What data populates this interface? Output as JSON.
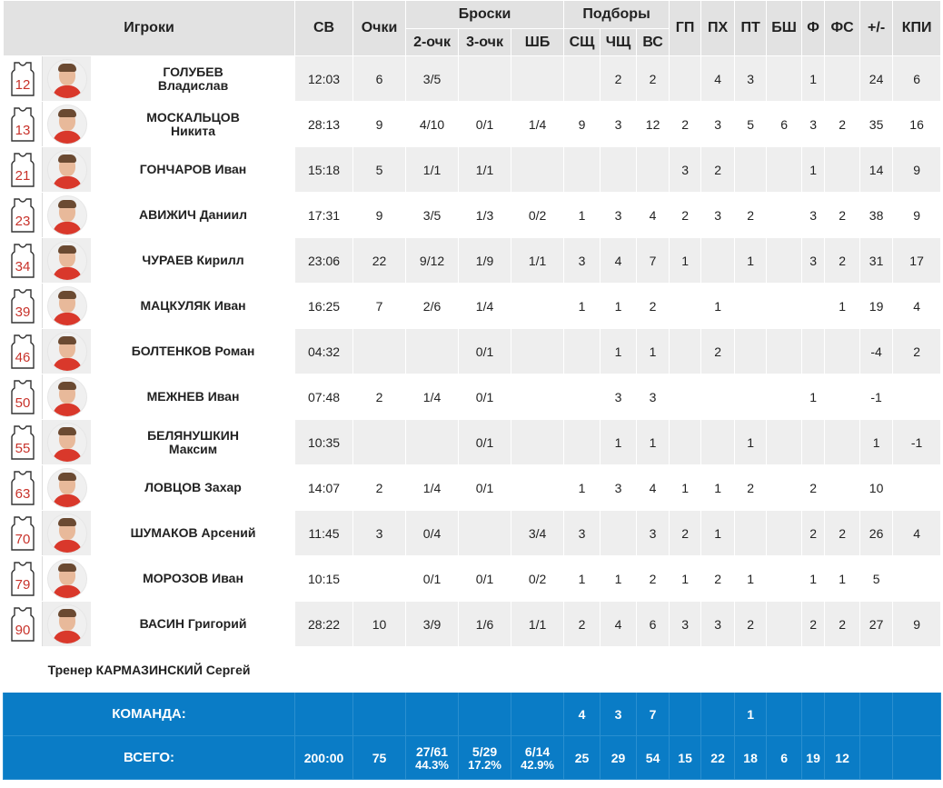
{
  "header": {
    "players": "Игроки",
    "sv": "СВ",
    "ochki": "Очки",
    "throws": "Броски",
    "two": "2-очк",
    "three": "3-очк",
    "ft": "ШБ",
    "rebounds": "Подборы",
    "sch": "СЩ",
    "chsch": "ЧЩ",
    "vs": "ВС",
    "gp": "ГП",
    "ph": "ПХ",
    "pt": "ПТ",
    "bsh": "БШ",
    "f": "Ф",
    "fs": "ФС",
    "pm": "+/-",
    "kpi": "КПИ"
  },
  "colors": {
    "jersey_number": "#c8322a",
    "team_row": "#0a7cc6",
    "header": "#e2e2e2",
    "alt_row": "#eeeeee"
  },
  "players": [
    {
      "num": "12",
      "name1": "ГОЛУБЕВ",
      "name2": "Владислав",
      "sv": "12:03",
      "pts": "6",
      "two": "3/5",
      "three": "",
      "ft": "",
      "sch": "",
      "chsch": "2",
      "vs": "2",
      "gp": "",
      "ph": "4",
      "pt": "3",
      "bsh": "",
      "f": "1",
      "fs": "",
      "pm": "24",
      "kpi": "6"
    },
    {
      "num": "13",
      "name1": "МОСКАЛЬЦОВ",
      "name2": "Никита",
      "sv": "28:13",
      "pts": "9",
      "two": "4/10",
      "three": "0/1",
      "ft": "1/4",
      "sch": "9",
      "chsch": "3",
      "vs": "12",
      "gp": "2",
      "ph": "3",
      "pt": "5",
      "bsh": "6",
      "f": "3",
      "fs": "2",
      "pm": "35",
      "kpi": "16"
    },
    {
      "num": "21",
      "name1": "ГОНЧАРОВ Иван",
      "name2": "",
      "sv": "15:18",
      "pts": "5",
      "two": "1/1",
      "three": "1/1",
      "ft": "",
      "sch": "",
      "chsch": "",
      "vs": "",
      "gp": "3",
      "ph": "2",
      "pt": "",
      "bsh": "",
      "f": "1",
      "fs": "",
      "pm": "14",
      "kpi": "9"
    },
    {
      "num": "23",
      "name1": "АВИЖИЧ Даниил",
      "name2": "",
      "sv": "17:31",
      "pts": "9",
      "two": "3/5",
      "three": "1/3",
      "ft": "0/2",
      "sch": "1",
      "chsch": "3",
      "vs": "4",
      "gp": "2",
      "ph": "3",
      "pt": "2",
      "bsh": "",
      "f": "3",
      "fs": "2",
      "pm": "38",
      "kpi": "9"
    },
    {
      "num": "34",
      "name1": "ЧУРАЕВ Кирилл",
      "name2": "",
      "sv": "23:06",
      "pts": "22",
      "two": "9/12",
      "three": "1/9",
      "ft": "1/1",
      "sch": "3",
      "chsch": "4",
      "vs": "7",
      "gp": "1",
      "ph": "",
      "pt": "1",
      "bsh": "",
      "f": "3",
      "fs": "2",
      "pm": "31",
      "kpi": "17"
    },
    {
      "num": "39",
      "name1": "МАЦКУЛЯК Иван",
      "name2": "",
      "sv": "16:25",
      "pts": "7",
      "two": "2/6",
      "three": "1/4",
      "ft": "",
      "sch": "1",
      "chsch": "1",
      "vs": "2",
      "gp": "",
      "ph": "1",
      "pt": "",
      "bsh": "",
      "f": "",
      "fs": "1",
      "pm": "19",
      "kpi": "4"
    },
    {
      "num": "46",
      "name1": "БОЛТЕНКОВ Роман",
      "name2": "",
      "sv": "04:32",
      "pts": "",
      "two": "",
      "three": "0/1",
      "ft": "",
      "sch": "",
      "chsch": "1",
      "vs": "1",
      "gp": "",
      "ph": "2",
      "pt": "",
      "bsh": "",
      "f": "",
      "fs": "",
      "pm": "-4",
      "kpi": "2"
    },
    {
      "num": "50",
      "name1": "МЕЖНЕВ Иван",
      "name2": "",
      "sv": "07:48",
      "pts": "2",
      "two": "1/4",
      "three": "0/1",
      "ft": "",
      "sch": "",
      "chsch": "3",
      "vs": "3",
      "gp": "",
      "ph": "",
      "pt": "",
      "bsh": "",
      "f": "1",
      "fs": "",
      "pm": "-1",
      "kpi": ""
    },
    {
      "num": "55",
      "name1": "БЕЛЯНУШКИН",
      "name2": "Максим",
      "sv": "10:35",
      "pts": "",
      "two": "",
      "three": "0/1",
      "ft": "",
      "sch": "",
      "chsch": "1",
      "vs": "1",
      "gp": "",
      "ph": "",
      "pt": "1",
      "bsh": "",
      "f": "",
      "fs": "",
      "pm": "1",
      "kpi": "-1"
    },
    {
      "num": "63",
      "name1": "ЛОВЦОВ Захар",
      "name2": "",
      "sv": "14:07",
      "pts": "2",
      "two": "1/4",
      "three": "0/1",
      "ft": "",
      "sch": "1",
      "chsch": "3",
      "vs": "4",
      "gp": "1",
      "ph": "1",
      "pt": "2",
      "bsh": "",
      "f": "2",
      "fs": "",
      "pm": "10",
      "kpi": ""
    },
    {
      "num": "70",
      "name1": "ШУМАКОВ Арсений",
      "name2": "",
      "sv": "11:45",
      "pts": "3",
      "two": "0/4",
      "three": "",
      "ft": "3/4",
      "sch": "3",
      "chsch": "",
      "vs": "3",
      "gp": "2",
      "ph": "1",
      "pt": "",
      "bsh": "",
      "f": "2",
      "fs": "2",
      "pm": "26",
      "kpi": "4"
    },
    {
      "num": "79",
      "name1": "МОРОЗОВ Иван",
      "name2": "",
      "sv": "10:15",
      "pts": "",
      "two": "0/1",
      "three": "0/1",
      "ft": "0/2",
      "sch": "1",
      "chsch": "1",
      "vs": "2",
      "gp": "1",
      "ph": "2",
      "pt": "1",
      "bsh": "",
      "f": "1",
      "fs": "1",
      "pm": "5",
      "kpi": ""
    },
    {
      "num": "90",
      "name1": "ВАСИН Григорий",
      "name2": "",
      "sv": "28:22",
      "pts": "10",
      "two": "3/9",
      "three": "1/6",
      "ft": "1/1",
      "sch": "2",
      "chsch": "4",
      "vs": "6",
      "gp": "3",
      "ph": "3",
      "pt": "2",
      "bsh": "",
      "f": "2",
      "fs": "2",
      "pm": "27",
      "kpi": "9"
    }
  ],
  "coach": "Тренер КАРМАЗИНСКИЙ Сергей",
  "team": {
    "label": "КОМАНДА:",
    "sch": "4",
    "chsch": "3",
    "vs": "7",
    "pt": "1"
  },
  "total": {
    "label": "ВСЕГО:",
    "sv": "200:00",
    "pts": "75",
    "two": "27/61",
    "two_pct": "44.3%",
    "three": "5/29",
    "three_pct": "17.2%",
    "ft": "6/14",
    "ft_pct": "42.9%",
    "sch": "25",
    "chsch": "29",
    "vs": "54",
    "gp": "15",
    "ph": "22",
    "pt": "18",
    "bsh": "6",
    "f": "19",
    "fs": "12"
  }
}
